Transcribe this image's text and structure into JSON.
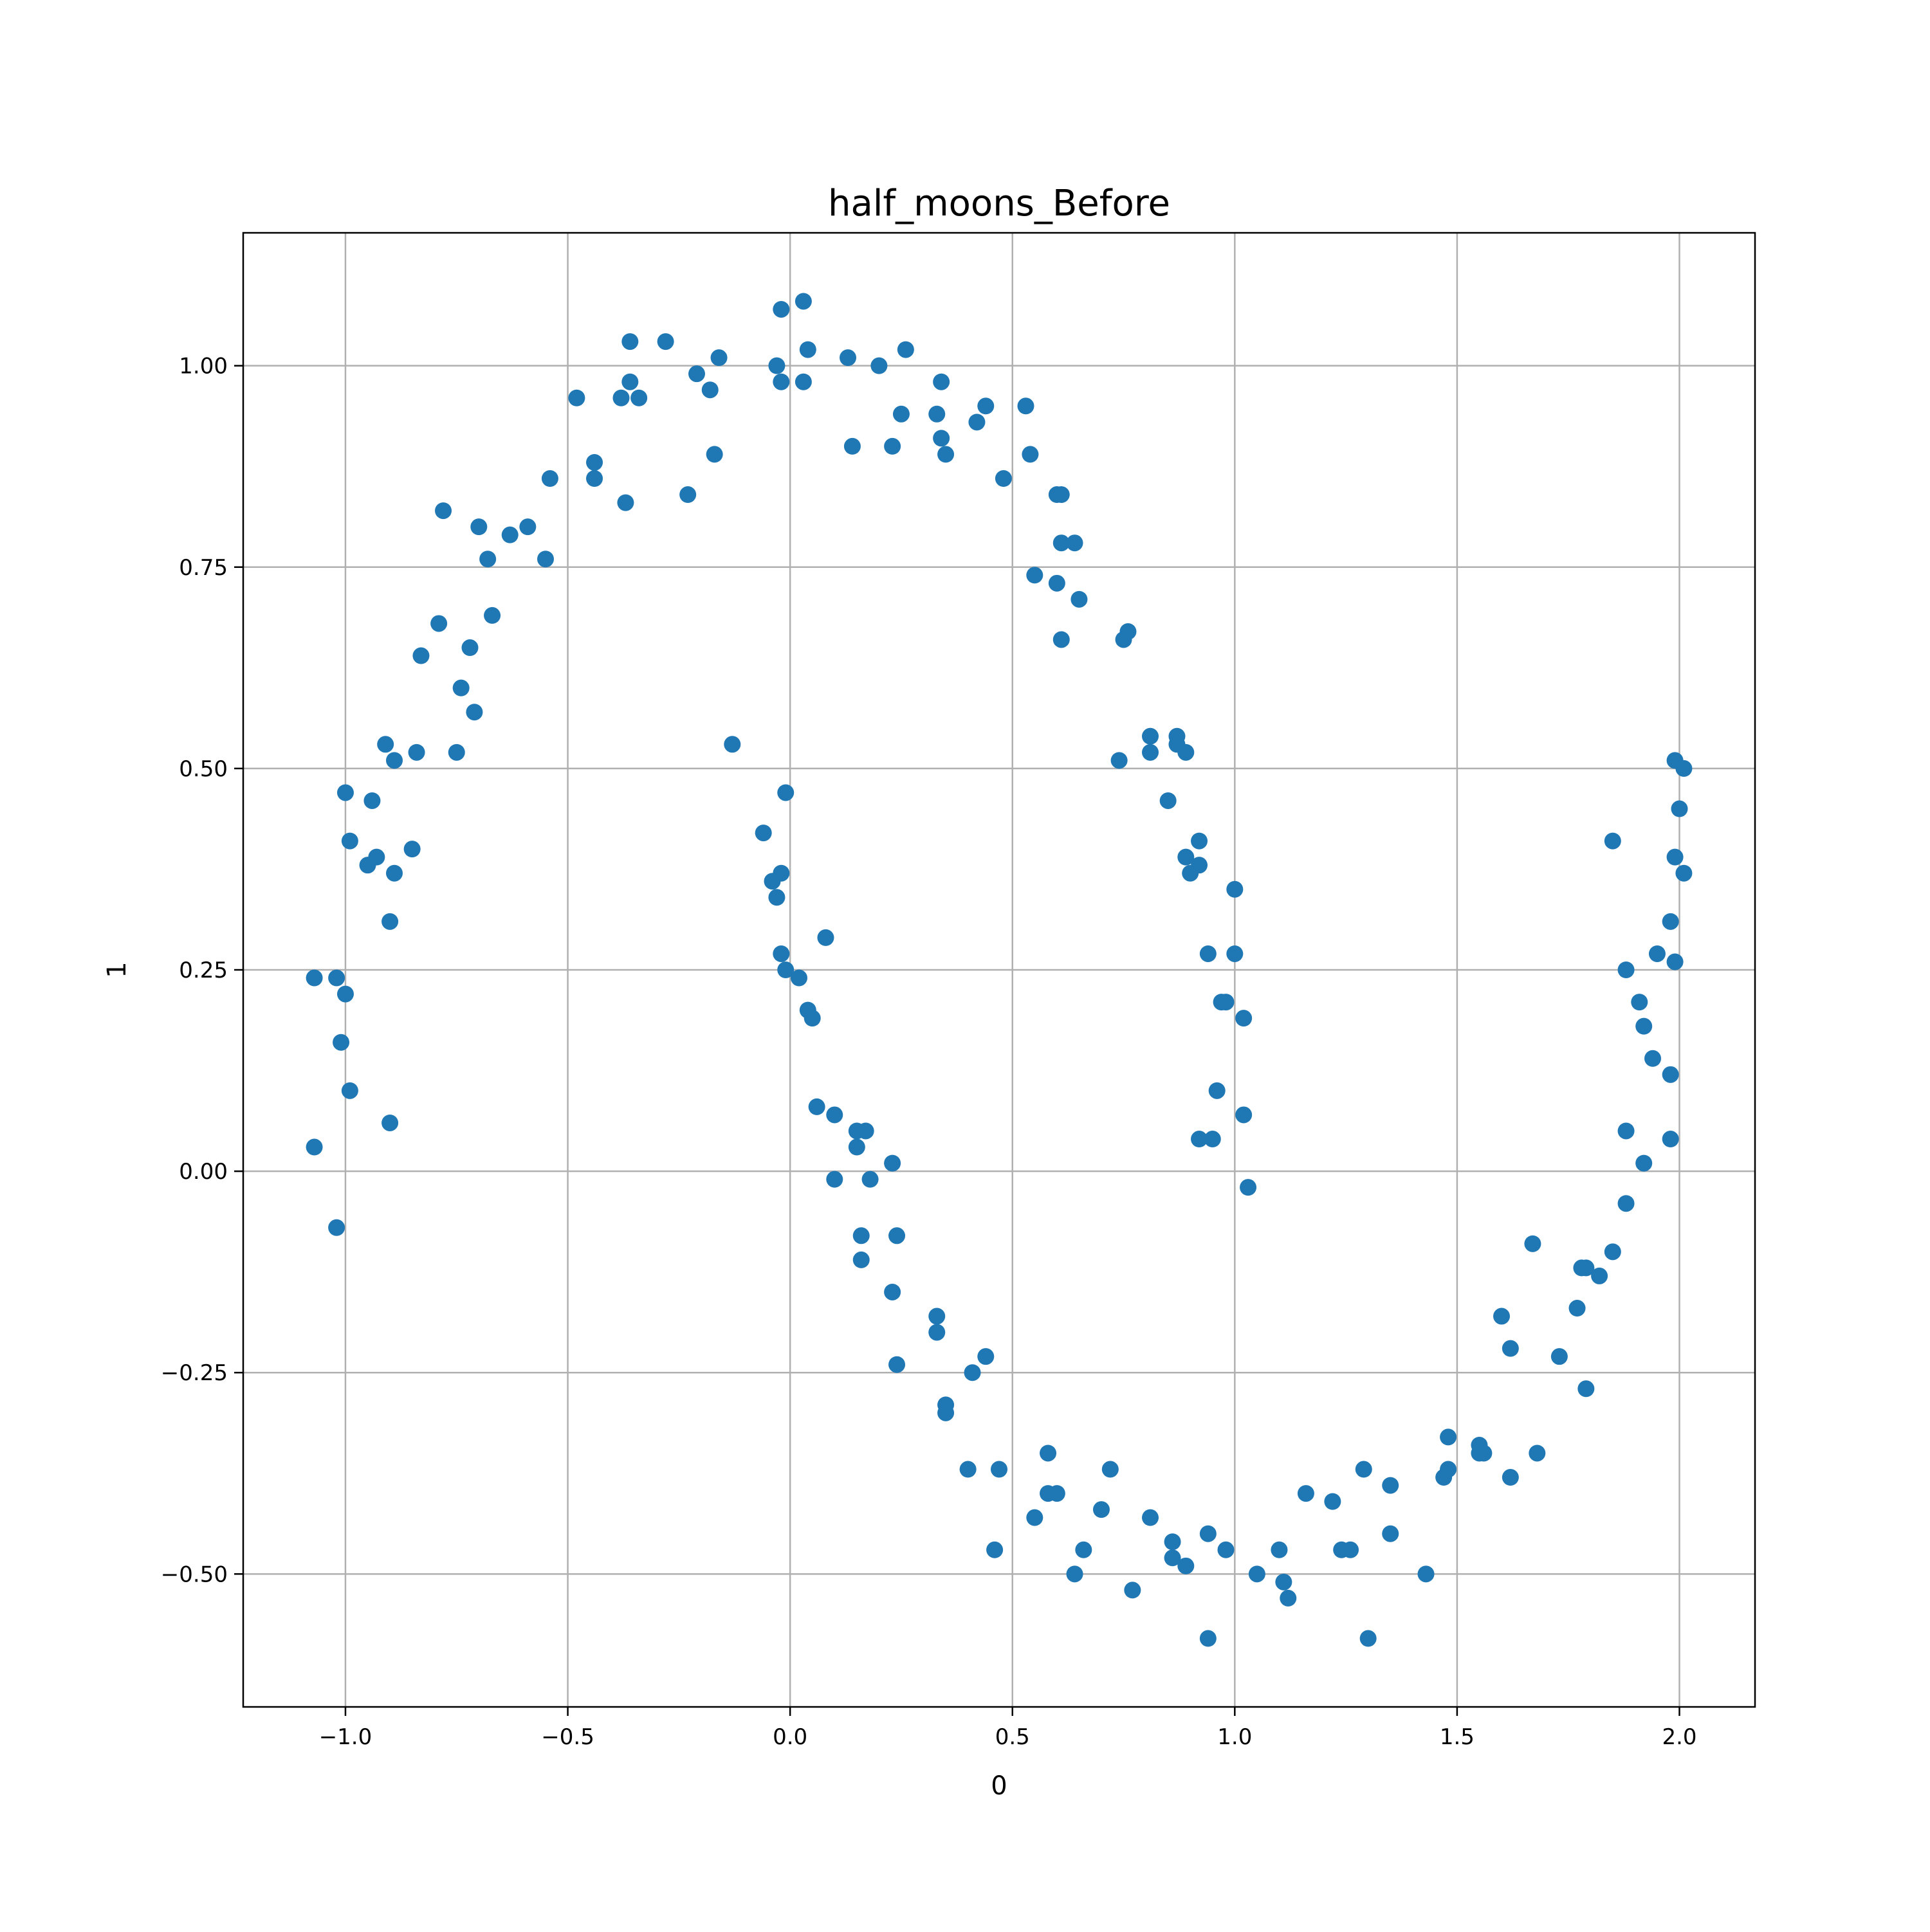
{
  "chart_data": {
    "type": "scatter",
    "title": "half_moons_Before",
    "xlabel": "0",
    "ylabel": "1",
    "xlim": [
      -1.23,
      2.17
    ],
    "ylim": [
      -0.665,
      1.165
    ],
    "xticks": [
      -1.0,
      -0.5,
      0.0,
      0.5,
      1.0,
      1.5,
      2.0
    ],
    "xtick_labels": [
      "−1.0",
      "−0.5",
      "0.0",
      "0.5",
      "1.0",
      "1.5",
      "2.0"
    ],
    "yticks": [
      -0.5,
      -0.25,
      0.0,
      0.25,
      0.5,
      0.75,
      1.0
    ],
    "ytick_labels": [
      "−0.50",
      "−0.25",
      "0.00",
      "0.25",
      "0.50",
      "0.75",
      "1.00"
    ],
    "grid": true,
    "marker_color": "#1f77b4",
    "points": [
      [
        -1.07,
        0.24
      ],
      [
        -1.02,
        0.24
      ],
      [
        -1.0,
        0.22
      ],
      [
        -1.01,
        0.16
      ],
      [
        -0.99,
        0.1
      ],
      [
        -1.07,
        0.03
      ],
      [
        -1.02,
        -0.07
      ],
      [
        -0.9,
        0.06
      ],
      [
        -0.9,
        0.31
      ],
      [
        -0.89,
        0.37
      ],
      [
        -0.93,
        0.39
      ],
      [
        -0.95,
        0.38
      ],
      [
        -0.99,
        0.41
      ],
      [
        -0.94,
        0.46
      ],
      [
        -1.0,
        0.47
      ],
      [
        -0.91,
        0.53
      ],
      [
        -0.89,
        0.51
      ],
      [
        -0.84,
        0.52
      ],
      [
        -0.85,
        0.4
      ],
      [
        -0.75,
        0.52
      ],
      [
        -0.71,
        0.57
      ],
      [
        -0.74,
        0.6
      ],
      [
        -0.72,
        0.65
      ],
      [
        -0.83,
        0.64
      ],
      [
        -0.79,
        0.68
      ],
      [
        -0.67,
        0.69
      ],
      [
        -0.68,
        0.76
      ],
      [
        -0.7,
        0.8
      ],
      [
        -0.78,
        0.82
      ],
      [
        -0.63,
        0.79
      ],
      [
        -0.59,
        0.8
      ],
      [
        -0.55,
        0.76
      ],
      [
        -0.54,
        0.86
      ],
      [
        -0.44,
        0.86
      ],
      [
        -0.44,
        0.88
      ],
      [
        -0.48,
        0.96
      ],
      [
        -0.37,
        0.83
      ],
      [
        -0.38,
        0.96
      ],
      [
        -0.36,
        0.98
      ],
      [
        -0.34,
        0.96
      ],
      [
        -0.36,
        1.03
      ],
      [
        -0.28,
        1.03
      ],
      [
        -0.23,
        0.84
      ],
      [
        -0.21,
        0.99
      ],
      [
        -0.18,
        0.97
      ],
      [
        -0.17,
        0.89
      ],
      [
        -0.16,
        1.01
      ],
      [
        -0.03,
        1.0
      ],
      [
        -0.02,
        0.98
      ],
      [
        -0.02,
        1.07
      ],
      [
        0.03,
        1.08
      ],
      [
        0.03,
        0.98
      ],
      [
        0.04,
        1.02
      ],
      [
        0.13,
        1.01
      ],
      [
        0.14,
        0.9
      ],
      [
        0.2,
        1.0
      ],
      [
        0.23,
        0.9
      ],
      [
        0.25,
        0.94
      ],
      [
        0.26,
        1.02
      ],
      [
        0.33,
        0.94
      ],
      [
        0.34,
        0.98
      ],
      [
        0.34,
        0.91
      ],
      [
        0.35,
        0.89
      ],
      [
        0.42,
        0.93
      ],
      [
        0.44,
        0.95
      ],
      [
        0.48,
        0.86
      ],
      [
        0.53,
        0.95
      ],
      [
        0.54,
        0.89
      ],
      [
        0.55,
        0.74
      ],
      [
        0.6,
        0.84
      ],
      [
        0.61,
        0.84
      ],
      [
        0.61,
        0.78
      ],
      [
        0.64,
        0.78
      ],
      [
        0.6,
        0.73
      ],
      [
        0.65,
        0.71
      ],
      [
        0.61,
        0.66
      ],
      [
        0.76,
        0.67
      ],
      [
        0.75,
        0.66
      ],
      [
        0.74,
        0.51
      ],
      [
        0.81,
        0.54
      ],
      [
        0.81,
        0.52
      ],
      [
        0.87,
        0.54
      ],
      [
        0.87,
        0.53
      ],
      [
        0.89,
        0.52
      ],
      [
        0.85,
        0.46
      ],
      [
        0.92,
        0.41
      ],
      [
        0.89,
        0.39
      ],
      [
        0.92,
        0.38
      ],
      [
        0.9,
        0.37
      ],
      [
        1.0,
        0.35
      ],
      [
        0.94,
        0.27
      ],
      [
        1.0,
        0.27
      ],
      [
        0.97,
        0.21
      ],
      [
        0.98,
        0.21
      ],
      [
        1.02,
        0.19
      ],
      [
        0.96,
        0.1
      ],
      [
        0.92,
        0.04
      ],
      [
        0.95,
        0.04
      ],
      [
        1.02,
        0.07
      ],
      [
        1.03,
        -0.02
      ],
      [
        -0.13,
        0.53
      ],
      [
        -0.01,
        0.47
      ],
      [
        -0.06,
        0.42
      ],
      [
        -0.02,
        0.37
      ],
      [
        -0.04,
        0.36
      ],
      [
        -0.03,
        0.34
      ],
      [
        -0.02,
        0.27
      ],
      [
        0.08,
        0.29
      ],
      [
        -0.01,
        0.25
      ],
      [
        0.02,
        0.24
      ],
      [
        0.04,
        0.2
      ],
      [
        0.05,
        0.19
      ],
      [
        0.06,
        0.08
      ],
      [
        0.1,
        0.07
      ],
      [
        0.15,
        0.05
      ],
      [
        0.17,
        0.05
      ],
      [
        0.15,
        0.03
      ],
      [
        0.23,
        0.01
      ],
      [
        0.1,
        -0.01
      ],
      [
        0.18,
        -0.01
      ],
      [
        0.16,
        -0.08
      ],
      [
        0.24,
        -0.08
      ],
      [
        0.16,
        -0.11
      ],
      [
        0.23,
        -0.15
      ],
      [
        0.33,
        -0.18
      ],
      [
        0.33,
        -0.2
      ],
      [
        0.24,
        -0.24
      ],
      [
        0.44,
        -0.23
      ],
      [
        0.41,
        -0.25
      ],
      [
        0.35,
        -0.29
      ],
      [
        0.35,
        -0.3
      ],
      [
        0.4,
        -0.37
      ],
      [
        0.47,
        -0.37
      ],
      [
        0.58,
        -0.35
      ],
      [
        0.58,
        -0.4
      ],
      [
        0.6,
        -0.4
      ],
      [
        0.55,
        -0.43
      ],
      [
        0.46,
        -0.47
      ],
      [
        0.66,
        -0.47
      ],
      [
        0.72,
        -0.37
      ],
      [
        0.7,
        -0.42
      ],
      [
        0.81,
        -0.43
      ],
      [
        0.64,
        -0.5
      ],
      [
        0.77,
        -0.52
      ],
      [
        0.86,
        -0.46
      ],
      [
        0.86,
        -0.48
      ],
      [
        0.89,
        -0.49
      ],
      [
        0.94,
        -0.45
      ],
      [
        0.98,
        -0.47
      ],
      [
        0.94,
        -0.58
      ],
      [
        1.05,
        -0.5
      ],
      [
        1.1,
        -0.47
      ],
      [
        1.11,
        -0.51
      ],
      [
        1.12,
        -0.53
      ],
      [
        1.16,
        -0.4
      ],
      [
        1.22,
        -0.41
      ],
      [
        1.24,
        -0.47
      ],
      [
        1.26,
        -0.47
      ],
      [
        1.29,
        -0.37
      ],
      [
        1.3,
        -0.58
      ],
      [
        1.35,
        -0.39
      ],
      [
        1.35,
        -0.45
      ],
      [
        1.43,
        -0.5
      ],
      [
        1.47,
        -0.38
      ],
      [
        1.48,
        -0.37
      ],
      [
        1.48,
        -0.33
      ],
      [
        1.55,
        -0.35
      ],
      [
        1.55,
        -0.34
      ],
      [
        1.56,
        -0.35
      ],
      [
        1.6,
        -0.18
      ],
      [
        1.62,
        -0.22
      ],
      [
        1.62,
        -0.38
      ],
      [
        1.67,
        -0.09
      ],
      [
        1.68,
        -0.35
      ],
      [
        1.73,
        -0.23
      ],
      [
        1.77,
        -0.17
      ],
      [
        1.78,
        -0.12
      ],
      [
        1.79,
        -0.12
      ],
      [
        1.79,
        -0.27
      ],
      [
        1.82,
        -0.13
      ],
      [
        1.85,
        -0.1
      ],
      [
        1.88,
        -0.04
      ],
      [
        1.88,
        0.05
      ],
      [
        1.88,
        0.25
      ],
      [
        1.85,
        0.41
      ],
      [
        1.91,
        0.21
      ],
      [
        1.92,
        0.18
      ],
      [
        1.94,
        0.14
      ],
      [
        1.95,
        0.27
      ],
      [
        1.98,
        0.31
      ],
      [
        1.98,
        0.12
      ],
      [
        1.98,
        0.04
      ],
      [
        1.99,
        0.26
      ],
      [
        1.99,
        0.39
      ],
      [
        1.92,
        0.01
      ],
      [
        2.0,
        0.45
      ],
      [
        2.01,
        0.37
      ],
      [
        2.01,
        0.5
      ],
      [
        1.99,
        0.51
      ]
    ]
  }
}
